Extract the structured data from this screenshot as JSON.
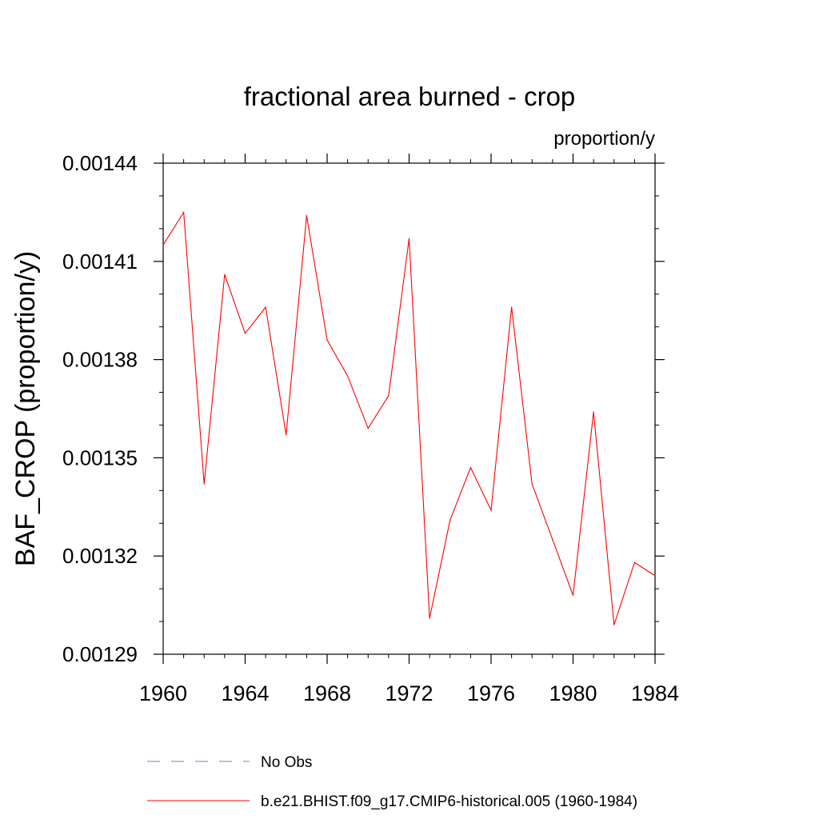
{
  "chart_data": {
    "type": "line",
    "title": "fractional area burned - crop",
    "units_label": "proportion/y",
    "ylabel": "BAF_CROP  (proportion/y)",
    "xlabel": "",
    "xlim": [
      1960,
      1984
    ],
    "ylim": [
      0.00129,
      0.00144
    ],
    "x_ticks": [
      "1960",
      "1964",
      "1968",
      "1972",
      "1976",
      "1980",
      "1984"
    ],
    "y_ticks": [
      "0.00129",
      "0.00132",
      "0.00135",
      "0.00138",
      "0.00141",
      "0.00144"
    ],
    "x": [
      1960,
      1961,
      1962,
      1963,
      1964,
      1965,
      1966,
      1967,
      1968,
      1969,
      1970,
      1971,
      1972,
      1973,
      1974,
      1975,
      1976,
      1977,
      1978,
      1979,
      1980,
      1981,
      1982,
      1983,
      1984
    ],
    "series": [
      {
        "name": "b.e21.BHIST.f09_g17.CMIP6-historical.005 (1960-1984)",
        "color": "#ff0000",
        "style": "solid",
        "values": [
          0.001415,
          0.001425,
          0.001342,
          0.001406,
          0.001388,
          0.001396,
          0.001357,
          0.001424,
          0.001386,
          0.001375,
          0.001359,
          0.001369,
          0.001417,
          0.001301,
          0.001331,
          0.001347,
          0.001334,
          0.001396,
          0.001342,
          0.001325,
          0.001308,
          0.001364,
          0.001299,
          0.001318,
          0.001314
        ]
      }
    ],
    "legend": [
      {
        "label": "No Obs",
        "color": "#7b7bc8",
        "style": "dashed"
      },
      {
        "label": "b.e21.BHIST.f09_g17.CMIP6-historical.005 (1960-1984)",
        "color": "#ff0000",
        "style": "solid"
      }
    ],
    "legend_position": "bottom",
    "grid": false
  }
}
